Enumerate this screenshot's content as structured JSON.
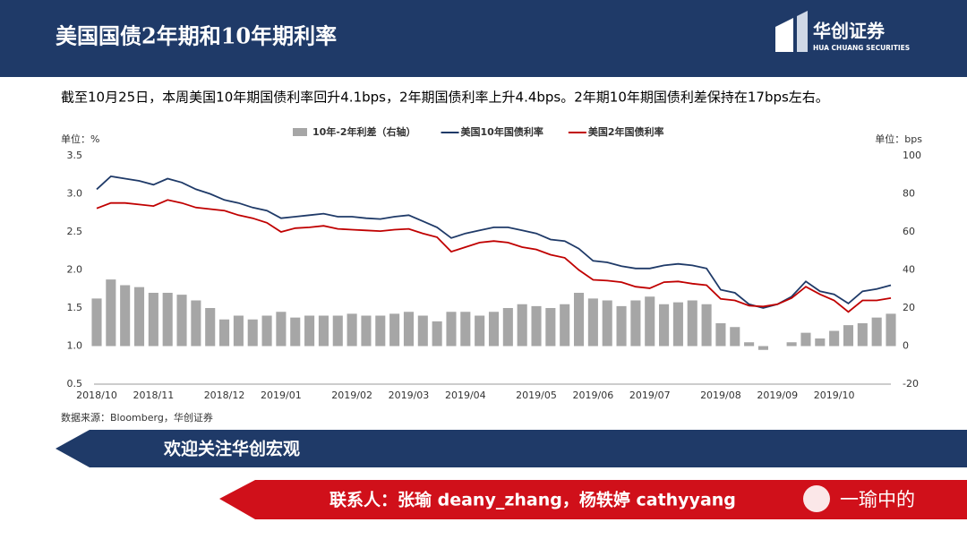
{
  "header": {
    "title": "美国国债2年期和10年期利率",
    "logo_name": "华创证券",
    "logo_sub": "HUA CHUANG SECURITIES"
  },
  "subtitle": "截至10月25日，本周美国10年期国债利率回升4.1bps，2年期国债利率上升4.4bps。2年期10年期国债利差保持在17bps左右。",
  "chart_data": {
    "type": "combo",
    "y_unit": "单位：%",
    "y2_unit": "单位：bps",
    "source": "数据来源：Bloomberg，华创证券",
    "categories": [
      "2018/10",
      null,
      null,
      null,
      "2018/11",
      null,
      null,
      null,
      null,
      "2018/12",
      null,
      null,
      null,
      "2019/01",
      null,
      null,
      null,
      null,
      "2019/02",
      null,
      null,
      null,
      "2019/03",
      null,
      null,
      null,
      "2019/04",
      null,
      null,
      null,
      null,
      "2019/05",
      null,
      null,
      null,
      "2019/06",
      null,
      null,
      null,
      "2019/07",
      null,
      null,
      null,
      null,
      "2019/08",
      null,
      null,
      null,
      "2019/09",
      null,
      null,
      null,
      "2019/10",
      null,
      null,
      null,
      null
    ],
    "series": [
      {
        "name": "10年-2年利差（右轴）",
        "type": "bar",
        "axis": "y2",
        "color": "#a6a6a6",
        "values": [
          25,
          35,
          32,
          31,
          28,
          28,
          27,
          24,
          20,
          14,
          16,
          14,
          16,
          18,
          15,
          16,
          16,
          16,
          17,
          16,
          16,
          17,
          18,
          16,
          13,
          18,
          18,
          16,
          18,
          20,
          22,
          21,
          20,
          22,
          28,
          25,
          24,
          21,
          24,
          26,
          22,
          23,
          24,
          22,
          12,
          10,
          2,
          -2,
          0,
          2,
          7,
          4,
          8,
          11,
          12,
          15,
          17
        ]
      },
      {
        "name": "美国10年国债利率",
        "type": "line",
        "color": "#1f3a68",
        "values": [
          3.06,
          3.23,
          3.2,
          3.17,
          3.12,
          3.2,
          3.15,
          3.06,
          3.0,
          2.92,
          2.88,
          2.82,
          2.78,
          2.68,
          2.7,
          2.72,
          2.74,
          2.7,
          2.7,
          2.68,
          2.67,
          2.7,
          2.72,
          2.64,
          2.56,
          2.42,
          2.48,
          2.52,
          2.56,
          2.56,
          2.52,
          2.48,
          2.4,
          2.38,
          2.28,
          2.12,
          2.1,
          2.05,
          2.02,
          2.02,
          2.06,
          2.08,
          2.06,
          2.02,
          1.74,
          1.7,
          1.55,
          1.5,
          1.55,
          1.65,
          1.85,
          1.72,
          1.68,
          1.56,
          1.72,
          1.75,
          1.8
        ]
      },
      {
        "name": "美国2年国债利率",
        "type": "line",
        "color": "#c00000",
        "values": [
          2.81,
          2.88,
          2.88,
          2.86,
          2.84,
          2.92,
          2.88,
          2.82,
          2.8,
          2.78,
          2.72,
          2.68,
          2.62,
          2.5,
          2.55,
          2.56,
          2.58,
          2.54,
          2.53,
          2.52,
          2.51,
          2.53,
          2.54,
          2.48,
          2.43,
          2.24,
          2.3,
          2.36,
          2.38,
          2.36,
          2.3,
          2.27,
          2.2,
          2.16,
          2.0,
          1.87,
          1.86,
          1.84,
          1.78,
          1.76,
          1.84,
          1.85,
          1.82,
          1.8,
          1.62,
          1.6,
          1.53,
          1.52,
          1.55,
          1.63,
          1.78,
          1.68,
          1.6,
          1.45,
          1.6,
          1.6,
          1.63
        ]
      }
    ],
    "ylim": [
      0.5,
      3.5
    ],
    "yticks": [
      3.5,
      {
        "value": 3.0,
        "label": "3.0"
      },
      2.5,
      {
        "value": 2.0,
        "label": "2.0"
      },
      1.5,
      {
        "value": 1.0,
        "label": "1.0"
      },
      0.5
    ],
    "y2lim": [
      -20,
      100
    ],
    "y2ticks": [
      100,
      80,
      60,
      40,
      20,
      0,
      -20
    ],
    "legend": "top"
  },
  "footer": {
    "banner": "欢迎关注华创宏观",
    "contact": "联系人：张瑜 deany_zhang，杨轶婷 cathyyang",
    "watermark": "一瑜中的"
  }
}
